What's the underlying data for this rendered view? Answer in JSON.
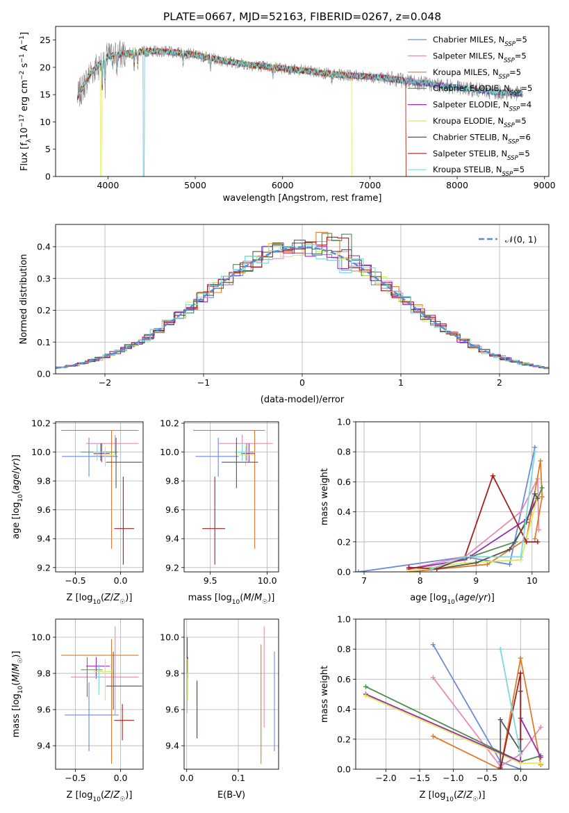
{
  "figure": {
    "title": "PLATE=0667, MJD=52163, FIBERID=0267, z=0.048"
  },
  "models": [
    {
      "name": "Chabrier MILES, N",
      "sub": "SSP",
      "val": "=5",
      "color": "#6a8ad8"
    },
    {
      "name": "Salpeter MILES, N",
      "sub": "SSP",
      "val": "=5",
      "color": "#e88ab4"
    },
    {
      "name": "Kroupa MILES, N",
      "sub": "SSP",
      "val": "=5",
      "color": "#e07a2a"
    },
    {
      "name": "Chabrier ELODIE, N",
      "sub": "SSP",
      "val": "=5",
      "color": "#4f8a50"
    },
    {
      "name": "Salpeter ELODIE, N",
      "sub": "SSP",
      "val": "=4",
      "color": "#9a2ab0"
    },
    {
      "name": "Kroupa ELODIE, N",
      "sub": "SSP",
      "val": "=5",
      "color": "#d8ec5a"
    },
    {
      "name": "Chabrier STELIB, N",
      "sub": "SSP",
      "val": "=6",
      "color": "#555555"
    },
    {
      "name": "Salpeter STELIB, N",
      "sub": "SSP",
      "val": "=5",
      "color": "#a51e1e"
    },
    {
      "name": "Kroupa STELIB, N",
      "sub": "SSP",
      "val": "=5",
      "color": "#7adada"
    }
  ],
  "chart_data": [
    {
      "id": "spectrum",
      "type": "line",
      "xlabel": "wavelength [Angstrom, rest frame]",
      "ylabel": "Flux [f_λ10^-17 erg cm^-2 s^-1 A^-1]",
      "xlim": [
        3400,
        9050
      ],
      "ylim": [
        0,
        27.5
      ],
      "xticks": [
        "4000",
        "5000",
        "6000",
        "7000",
        "8000",
        "9000"
      ],
      "yticks": [
        "0",
        "5",
        "10",
        "15",
        "20",
        "25"
      ],
      "data_color": "#888888",
      "continuum": {
        "x": [
          3650,
          3800,
          4000,
          4200,
          4500,
          4800,
          5000,
          5300,
          5600,
          6000,
          6300,
          6600,
          6900,
          7200,
          7500,
          7800,
          8100,
          8400,
          8700
        ],
        "y": [
          14.5,
          19,
          22,
          22.5,
          23,
          22.7,
          22.3,
          21.3,
          20.5,
          19.8,
          19.3,
          18.7,
          18.4,
          18,
          17.3,
          16.7,
          16.1,
          15.5,
          15.2
        ]
      },
      "grid": false,
      "legend": "top-right"
    },
    {
      "id": "residuals",
      "type": "step",
      "xlabel": "(data-model)/error",
      "ylabel": "Normed distribution",
      "xlim": [
        -2.5,
        2.5
      ],
      "ylim": [
        0,
        0.47
      ],
      "xticks": [
        "−2",
        "−1",
        "0",
        "1",
        "2"
      ],
      "yticks": [
        "0.0",
        "0.1",
        "0.2",
        "0.3",
        "0.4"
      ],
      "gauss_label": "𝒩(0, 1)",
      "gauss_color": "#5b8ad8",
      "grid": true,
      "legend": "top-right"
    },
    {
      "id": "age-vs-Z",
      "type": "errorbar",
      "xlabel": "Z [log10(Z/Z☉)]",
      "ylabel": "age  [log10(age/yr)]",
      "xlim": [
        -0.72,
        0.25
      ],
      "ylim": [
        9.17,
        10.21
      ],
      "xticks": [
        "−0.5",
        "0.0"
      ],
      "yticks": [
        "9.2",
        "9.4",
        "9.6",
        "9.8",
        "10.0",
        "10.2"
      ],
      "points": [
        {
          "x": -0.35,
          "xl": -0.65,
          "xh": -0.03,
          "y": 9.97,
          "yl": 9.83,
          "yh": 10.1
        },
        {
          "x": -0.06,
          "xl": -0.38,
          "xh": 0.2,
          "y": 10.06,
          "yl": 9.98,
          "yh": 10.12
        },
        {
          "x": -0.1,
          "xl": -0.66,
          "xh": 0.2,
          "y": 10.15,
          "yl": 9.33,
          "yh": 10.15
        },
        {
          "x": -0.22,
          "xl": -0.44,
          "xh": -0.03,
          "y": 10.0,
          "yl": 9.94,
          "yh": 10.06
        },
        {
          "x": -0.21,
          "xl": -0.3,
          "xh": -0.12,
          "y": 9.99,
          "yl": 9.93,
          "yh": 10.06
        },
        {
          "x": -0.17,
          "xl": -0.3,
          "xh": -0.07,
          "y": 9.98,
          "yl": 9.9,
          "yh": 10.04
        },
        {
          "x": -0.05,
          "xl": -0.16,
          "xh": 0.24,
          "y": 9.93,
          "yl": 9.75,
          "yh": 10.1
        },
        {
          "x": 0.03,
          "xl": -0.07,
          "xh": 0.15,
          "y": 9.47,
          "yl": 9.22,
          "yh": 9.83
        },
        {
          "x": -0.26,
          "xl": -0.3,
          "xh": -0.2,
          "y": 10.0,
          "yl": 9.94,
          "yh": 10.06
        }
      ]
    },
    {
      "id": "age-vs-mass",
      "type": "errorbar",
      "xlabel": "mass [log10(M/M☉)]",
      "ylabel": "",
      "xlim": [
        9.27,
        10.1
      ],
      "ylim": [
        9.17,
        10.21
      ],
      "xticks": [
        "9.5",
        "10.0"
      ],
      "yticks": [
        "9.2",
        "9.4",
        "9.6",
        "9.8",
        "10.0",
        "10.2"
      ],
      "points": [
        {
          "x": 9.57,
          "xl": 9.37,
          "xh": 9.75,
          "y": 9.97,
          "yl": 9.83,
          "yh": 10.1
        },
        {
          "x": 9.78,
          "xl": 9.57,
          "xh": 10.05,
          "y": 10.06,
          "yl": 9.98,
          "yh": 10.12
        },
        {
          "x": 9.89,
          "xl": 9.35,
          "xh": 9.98,
          "y": 10.15,
          "yl": 9.33,
          "yh": 10.15
        },
        {
          "x": 9.82,
          "xl": 9.72,
          "xh": 9.88,
          "y": 10.0,
          "yl": 9.94,
          "yh": 10.06
        },
        {
          "x": 9.84,
          "xl": 9.77,
          "xh": 9.89,
          "y": 9.99,
          "yl": 9.93,
          "yh": 10.06
        },
        {
          "x": 9.81,
          "xl": 9.75,
          "xh": 9.88,
          "y": 9.98,
          "yl": 9.9,
          "yh": 10.04
        },
        {
          "x": 9.73,
          "xl": 9.6,
          "xh": 9.92,
          "y": 9.93,
          "yl": 9.75,
          "yh": 10.1
        },
        {
          "x": 9.54,
          "xl": 9.43,
          "xh": 9.63,
          "y": 9.47,
          "yl": 9.22,
          "yh": 9.83
        },
        {
          "x": 9.78,
          "xl": 9.73,
          "xh": 9.85,
          "y": 10.0,
          "yl": 9.94,
          "yh": 10.06
        }
      ]
    },
    {
      "id": "weight-vs-age",
      "type": "line",
      "xlabel": "age  [log10(age/yr)]",
      "ylabel": "mass weight",
      "xlim": [
        6.85,
        10.3
      ],
      "ylim": [
        0,
        1.0
      ],
      "xticks": [
        "7",
        "8",
        "9",
        "10"
      ],
      "yticks": [
        "0.0",
        "0.2",
        "0.4",
        "0.6",
        "0.8",
        "1.0"
      ],
      "series": [
        {
          "x": [
            6.9,
            8.8,
            9.6,
            10.05
          ],
          "y": [
            0.0,
            0.1,
            0.05,
            0.83
          ]
        },
        {
          "x": [
            7.8,
            8.8,
            9.8,
            10.1,
            10.12
          ],
          "y": [
            0.02,
            0.1,
            0.4,
            0.62,
            0.28
          ]
        },
        {
          "x": [
            7.8,
            9.2,
            9.9,
            10.15,
            10.18,
            10.05
          ],
          "y": [
            0.0,
            0.05,
            0.22,
            0.74,
            0.5,
            0.22
          ]
        },
        {
          "x": [
            8.2,
            8.9,
            9.7,
            10.1,
            10.18
          ],
          "y": [
            0.02,
            0.1,
            0.2,
            0.49,
            0.56
          ]
        },
        {
          "x": [
            7.8,
            8.8,
            9.9,
            10.1
          ],
          "y": [
            0.02,
            0.08,
            0.35,
            0.5
          ]
        },
        {
          "x": [
            7.8,
            8.8,
            9.8,
            10.1
          ],
          "y": [
            0.01,
            0.06,
            0.08,
            0.5
          ]
        },
        {
          "x": [
            8.3,
            9.0,
            9.6,
            9.9,
            10.05,
            10.1
          ],
          "y": [
            0.02,
            0.06,
            0.15,
            0.33,
            0.52,
            0.49
          ]
        },
        {
          "x": [
            7.8,
            8.3,
            8.8,
            9.3,
            9.9,
            10.1
          ],
          "y": [
            0.03,
            0.02,
            0.1,
            0.64,
            0.2,
            0.2
          ]
        },
        {
          "x": [
            8.2,
            8.8,
            9.8,
            10.05
          ],
          "y": [
            0.02,
            0.1,
            0.1,
            0.8
          ]
        }
      ]
    },
    {
      "id": "mass-vs-Z",
      "type": "errorbar",
      "xlabel": "Z [log10(Z/Z☉)]",
      "ylabel": "mass [log10(M/M☉)]",
      "xlim": [
        -0.72,
        0.25
      ],
      "ylim": [
        9.27,
        10.1
      ],
      "xticks": [
        "−0.5",
        "0.0"
      ],
      "yticks": [
        "9.4",
        "9.6",
        "9.8",
        "10.0"
      ],
      "points": [
        {
          "x": -0.35,
          "xl": -0.62,
          "xh": -0.02,
          "y": 9.57,
          "yl": 9.37,
          "yh": 9.75
        },
        {
          "x": -0.06,
          "xl": -0.55,
          "xh": 0.2,
          "y": 9.78,
          "yl": 9.57,
          "yh": 10.06
        },
        {
          "x": -0.1,
          "xl": -0.66,
          "xh": 0.2,
          "y": 9.9,
          "yl": 9.3,
          "yh": 9.99
        },
        {
          "x": -0.37,
          "xl": -0.44,
          "xh": -0.2,
          "y": 9.82,
          "yl": 9.67,
          "yh": 9.89
        },
        {
          "x": -0.27,
          "xl": -0.38,
          "xh": -0.12,
          "y": 9.84,
          "yl": 9.77,
          "yh": 9.89
        },
        {
          "x": -0.17,
          "xl": -0.3,
          "xh": -0.07,
          "y": 9.81,
          "yl": 9.65,
          "yh": 9.88
        },
        {
          "x": -0.08,
          "xl": -0.16,
          "xh": 0.24,
          "y": 9.73,
          "yl": 9.6,
          "yh": 9.92
        },
        {
          "x": 0.02,
          "xl": -0.07,
          "xh": 0.15,
          "y": 9.54,
          "yl": 9.43,
          "yh": 9.63
        },
        {
          "x": -0.24,
          "xl": -0.3,
          "xh": -0.2,
          "y": 9.78,
          "yl": 9.68,
          "yh": 9.85
        }
      ]
    },
    {
      "id": "mass-vs-EBV",
      "type": "errorbar",
      "xlabel": "E(B-V)",
      "ylabel": "",
      "xlim": [
        -0.005,
        0.178
      ],
      "ylim": [
        9.27,
        10.1
      ],
      "xticks": [
        "0.0",
        "0.1"
      ],
      "yticks": [
        "9.4",
        "9.6",
        "9.8",
        "10.0"
      ],
      "points": [
        {
          "x": 0.17,
          "yl": 9.37,
          "yh": 9.92
        },
        {
          "x": 0.15,
          "yl": 9.5,
          "yh": 10.06
        },
        {
          "x": 0.144,
          "yl": 9.3,
          "yh": 9.96
        },
        {
          "x": 0.001,
          "yl": 9.67,
          "yh": 9.9
        },
        {
          "x": 0.002,
          "yl": 9.77,
          "yh": 9.89
        },
        {
          "x": 0.002,
          "yl": 9.65,
          "yh": 9.88
        },
        {
          "x": 0.001,
          "yl": 9.88,
          "yh": 10.0
        },
        {
          "x": 0.02,
          "yl": 9.44,
          "yh": 9.76
        },
        {
          "x": 0.001,
          "yl": 9.58,
          "yh": 9.8
        }
      ]
    },
    {
      "id": "weight-vs-Z",
      "type": "line",
      "xlabel": "Z [log10(Z/Z☉)]",
      "ylabel": "mass weight",
      "xlim": [
        -2.45,
        0.42
      ],
      "ylim": [
        0,
        1.0
      ],
      "xticks": [
        "−2.0",
        "−1.5",
        "−1.0",
        "−0.5",
        "0.0"
      ],
      "yticks": [
        "0.0",
        "0.2",
        "0.4",
        "0.6",
        "0.8",
        "1.0"
      ],
      "series": [
        {
          "x": [
            -1.3,
            -0.3,
            0.0
          ],
          "y": [
            0.83,
            0.05,
            0.0
          ]
        },
        {
          "x": [
            -1.3,
            -0.3,
            0.0,
            0.3
          ],
          "y": [
            0.61,
            0.02,
            0.1,
            0.28
          ]
        },
        {
          "x": [
            -1.3,
            -0.3,
            0.0,
            0.3
          ],
          "y": [
            0.22,
            0.0,
            0.74,
            0.03
          ]
        },
        {
          "x": [
            -2.3,
            0.0,
            0.3
          ],
          "y": [
            0.55,
            0.05,
            0.09
          ]
        },
        {
          "x": [
            -2.3,
            0.0,
            0.0,
            0.3
          ],
          "y": [
            0.5,
            0.05,
            0.34,
            0.08
          ]
        },
        {
          "x": [
            -2.3,
            0.0,
            0.3
          ],
          "y": [
            0.49,
            0.04,
            0.04
          ]
        },
        {
          "x": [
            -0.3,
            -0.3,
            0.0,
            0.0
          ],
          "y": [
            0.01,
            0.33,
            0.12,
            0.52
          ]
        },
        {
          "x": [
            -0.3,
            0.0,
            0.0
          ],
          "y": [
            0.0,
            0.64,
            0.2
          ]
        },
        {
          "x": [
            -0.3,
            0.0
          ],
          "y": [
            0.8,
            0.1
          ]
        }
      ]
    }
  ]
}
